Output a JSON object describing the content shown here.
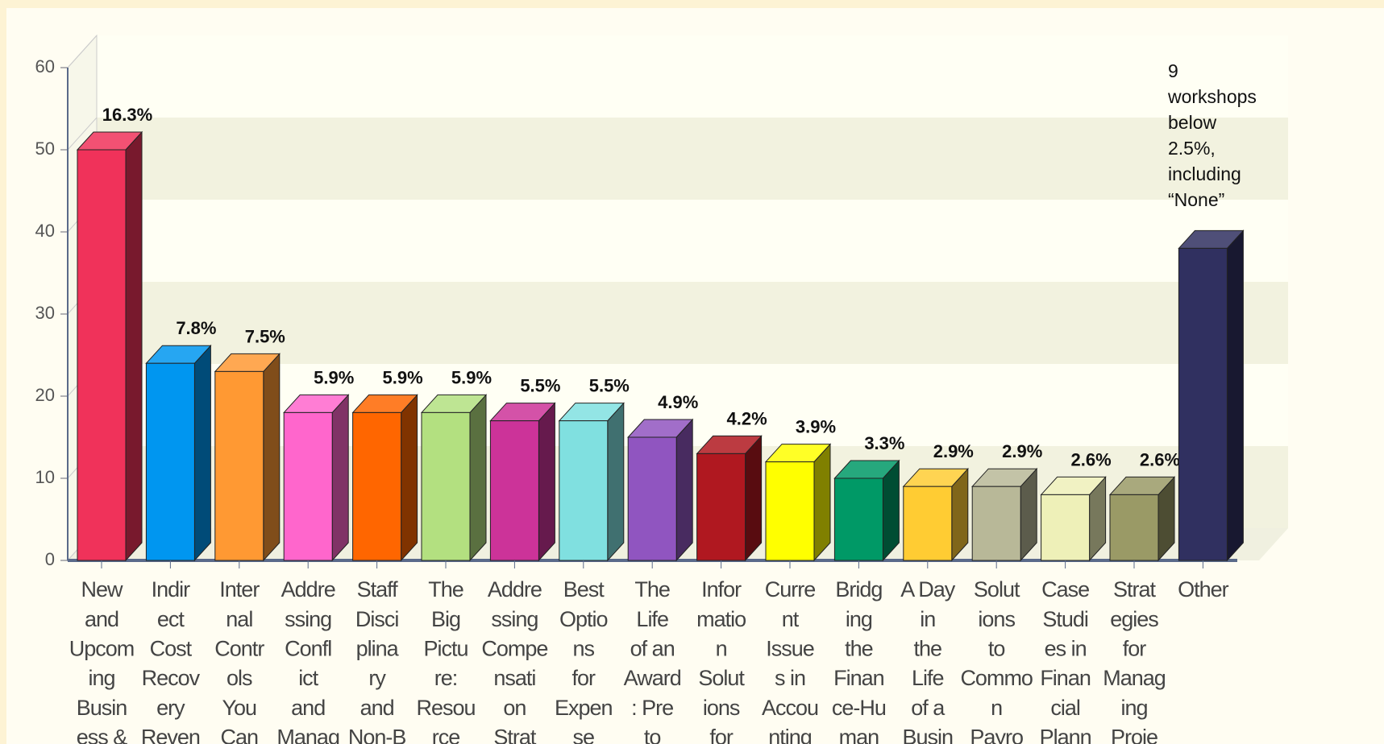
{
  "chart_data": {
    "type": "bar3d",
    "categories": [
      [
        "New",
        "and",
        "Upcom",
        "ing",
        "Busin",
        "ess &"
      ],
      [
        "Indir",
        "ect",
        "Cost",
        "Recov",
        "ery",
        "Reven"
      ],
      [
        "Inter",
        "nal",
        "Contr",
        "ols",
        "You",
        "Can"
      ],
      [
        "Addre",
        "ssing",
        "Confl",
        "ict",
        "and",
        "Manag"
      ],
      [
        "Staff",
        "Disci",
        "plina",
        "ry",
        "and",
        "Non-B"
      ],
      [
        "The",
        "Big",
        "Pictu",
        "re:",
        "Resou",
        "rce"
      ],
      [
        "Addre",
        "ssing",
        "Compe",
        "nsati",
        "on",
        "Strat"
      ],
      [
        "Best",
        "Optio",
        "ns",
        "for",
        "Expen",
        "se"
      ],
      [
        "The",
        "Life",
        "of an",
        "Award",
        ": Pre",
        "to"
      ],
      [
        "Infor",
        "matio",
        "n",
        "Solut",
        "ions",
        "for"
      ],
      [
        "Curre",
        "nt",
        "Issue",
        "s in",
        "Accou",
        "nting"
      ],
      [
        "Bridg",
        "ing",
        "the",
        "Finan",
        "ce-Hu",
        "man"
      ],
      [
        "A Day",
        "in",
        "the",
        "Life",
        "of a",
        "Busin"
      ],
      [
        "Solut",
        "ions",
        "to",
        "Commo",
        "n",
        "Payro"
      ],
      [
        "Case",
        "Studi",
        "es in",
        "Finan",
        "cial",
        "Plann"
      ],
      [
        "Strat",
        "egies",
        "for",
        "Manag",
        "ing",
        "Proje"
      ],
      [
        "Other"
      ]
    ],
    "values": [
      50,
      24,
      23,
      18,
      18,
      18,
      17,
      17,
      15,
      13,
      12,
      10,
      9,
      9,
      8,
      8,
      38
    ],
    "value_labels": [
      "16.3%",
      "7.8%",
      "7.5%",
      "5.9%",
      "5.9%",
      "5.9%",
      "5.5%",
      "5.5%",
      "4.9%",
      "4.2%",
      "3.9%",
      "3.3%",
      "2.9%",
      "2.9%",
      "2.6%",
      "2.6%",
      null
    ],
    "colors": [
      "#f0325a",
      "#0096f0",
      "#ff9933",
      "#ff66cc",
      "#ff6600",
      "#b3e080",
      "#cc3399",
      "#80e0e0",
      "#9055c0",
      "#b01820",
      "#ffff00",
      "#009966",
      "#ffcc33",
      "#b8b898",
      "#eef0b8",
      "#9a9a66",
      "#303060"
    ],
    "annotation": [
      "9",
      "workshops",
      "below",
      "2.5%,",
      "including",
      "“None”"
    ],
    "ylim": [
      0,
      60
    ],
    "yticks": [
      0,
      10,
      20,
      30,
      40,
      50,
      60
    ],
    "grid": true
  }
}
